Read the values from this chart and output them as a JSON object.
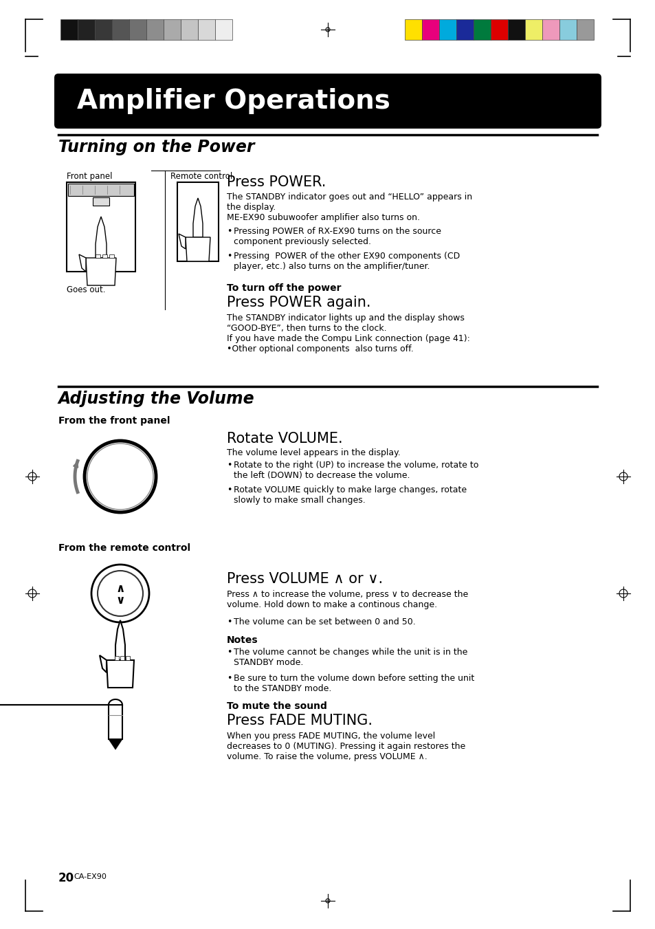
{
  "page_bg": "#ffffff",
  "title_box_color": "#000000",
  "title_text": "Amplifier Operations",
  "title_text_color": "#ffffff",
  "section1_title": "Turning on the Power",
  "section2_title": "Adjusting the Volume",
  "body_text_color": "#000000",
  "page_number": "20",
  "page_label": "CA-EX90",
  "gray_colors": [
    "#111111",
    "#222222",
    "#383838",
    "#555555",
    "#707070",
    "#8d8d8d",
    "#aaaaaa",
    "#c4c4c4",
    "#d8d8d8",
    "#eeeeee"
  ],
  "color_colors": [
    "#ffe000",
    "#e8007c",
    "#00aadd",
    "#1a2a99",
    "#007a3d",
    "#dd0000",
    "#111111",
    "#eeee66",
    "#ee99bb",
    "#88ccdd",
    "#999999"
  ]
}
